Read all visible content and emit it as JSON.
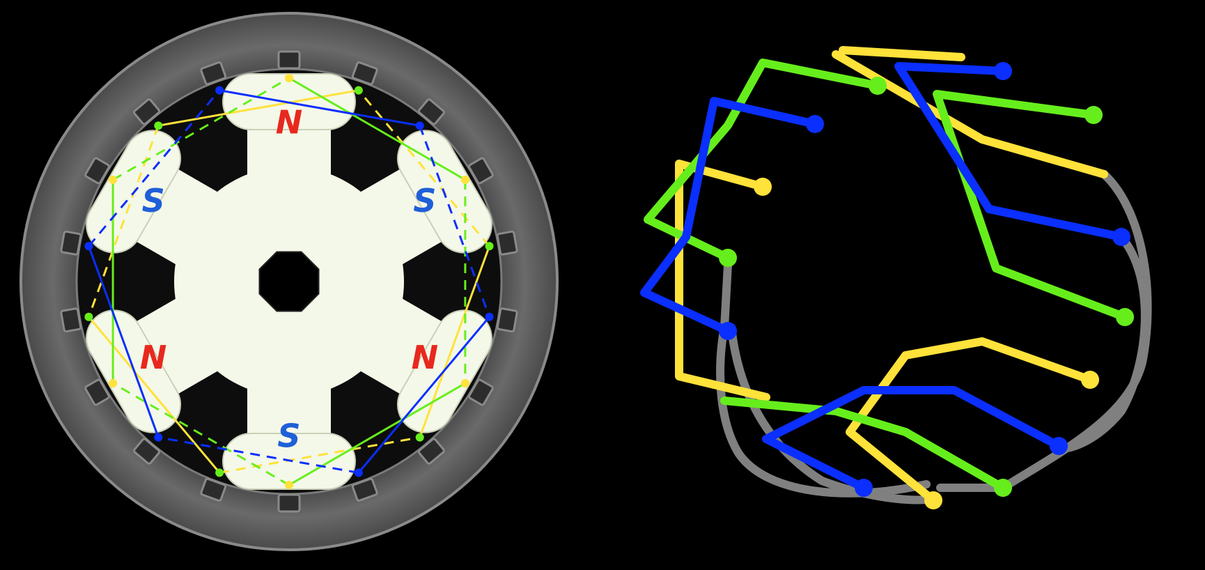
{
  "poles": [
    {
      "label": "N",
      "color": "#e8281e"
    },
    {
      "label": "S",
      "color": "#1f5fd8"
    },
    {
      "label": "N",
      "color": "#e8281e"
    },
    {
      "label": "S",
      "color": "#1f5fd8"
    },
    {
      "label": "N",
      "color": "#e8281e"
    },
    {
      "label": "S",
      "color": "#1f5fd8"
    }
  ],
  "colors": {
    "background": "#000000",
    "stator_outer": "#5c5c5c",
    "stator_ring": "#6e6e6e",
    "rotor": "#f4f8e8",
    "phase_a": "#ffe23a",
    "phase_b": "#66ee1c",
    "phase_c": "#0a2fff",
    "neutral": "#808080"
  },
  "phases": [
    {
      "id": "a",
      "color": "#ffe23a"
    },
    {
      "id": "b",
      "color": "#66ee1c"
    },
    {
      "id": "c",
      "color": "#0a2fff"
    }
  ],
  "slot_count": 18,
  "icons": [
    "stator-icon",
    "rotor-icon",
    "winding-icon"
  ]
}
